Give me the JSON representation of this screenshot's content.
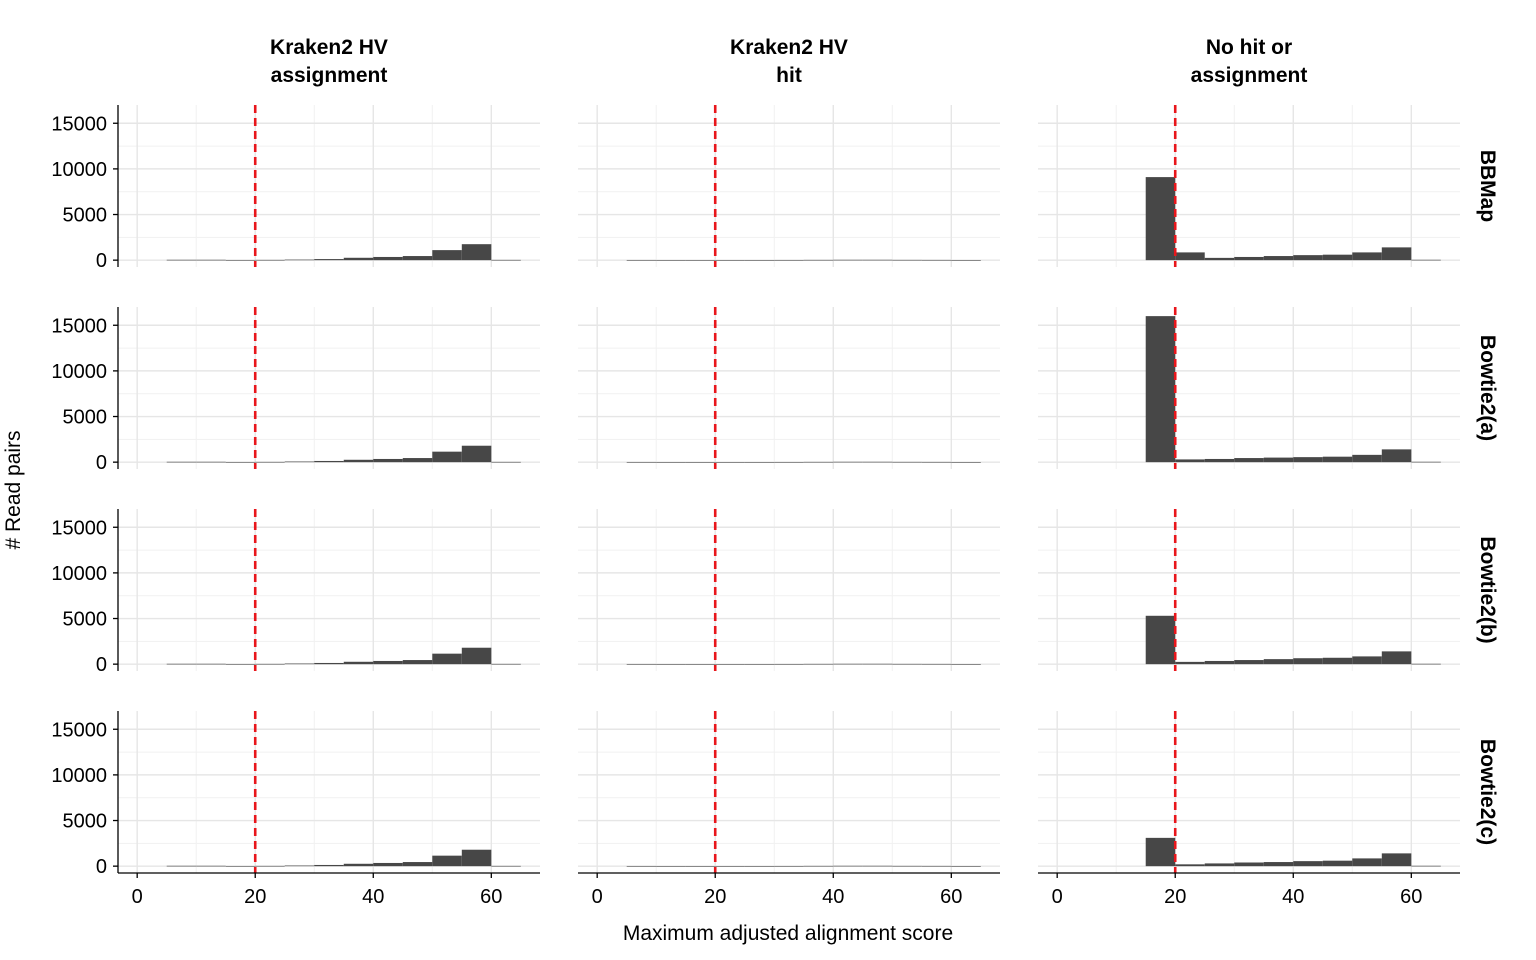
{
  "chart_data": {
    "type": "bar",
    "xlabel": "Maximum adjusted alignment score",
    "ylabel": "# Read pairs",
    "xlim": [
      -3.25,
      68.25
    ],
    "ylim": [
      -750,
      17000
    ],
    "x_ticks": [
      0,
      20,
      40,
      60
    ],
    "y_ticks": [
      0,
      5000,
      10000,
      15000
    ],
    "bin_width": 5,
    "bin_starts": [
      0,
      5,
      10,
      15,
      20,
      25,
      30,
      35,
      40,
      45,
      50,
      55,
      60
    ],
    "threshold": 20,
    "threshold_color": "#e8161b",
    "bar_color": "#474747",
    "grid": true,
    "columns": [
      "Kraken2 HV\nassignment",
      "Kraken2 HV\nhit",
      "No hit or\nassignment"
    ],
    "rows": [
      "BBMap",
      "Bowtie2(a)",
      "Bowtie2(b)",
      "Bowtie2(c)"
    ],
    "panels": [
      [
        {
          "values": [
            0,
            40,
            40,
            20,
            30,
            60,
            120,
            260,
            350,
            450,
            1100,
            1750,
            30
          ]
        },
        {
          "values": [
            0,
            20,
            10,
            5,
            10,
            15,
            20,
            30,
            40,
            40,
            30,
            25,
            10
          ]
        },
        {
          "values": [
            0,
            0,
            0,
            9100,
            850,
            250,
            350,
            450,
            550,
            600,
            850,
            1400,
            40
          ]
        }
      ],
      [
        {
          "values": [
            0,
            40,
            40,
            20,
            30,
            70,
            130,
            260,
            350,
            450,
            1150,
            1800,
            30
          ]
        },
        {
          "values": [
            0,
            20,
            10,
            5,
            10,
            15,
            20,
            30,
            40,
            40,
            30,
            25,
            10
          ]
        },
        {
          "values": [
            0,
            0,
            0,
            16000,
            300,
            350,
            450,
            500,
            550,
            600,
            800,
            1400,
            40
          ]
        }
      ],
      [
        {
          "values": [
            0,
            40,
            40,
            20,
            30,
            70,
            130,
            260,
            350,
            450,
            1150,
            1800,
            30
          ]
        },
        {
          "values": [
            0,
            20,
            10,
            5,
            10,
            15,
            20,
            30,
            40,
            40,
            30,
            25,
            10
          ]
        },
        {
          "values": [
            0,
            0,
            0,
            5300,
            250,
            350,
            450,
            550,
            650,
            700,
            850,
            1400,
            40
          ]
        }
      ],
      [
        {
          "values": [
            0,
            40,
            40,
            20,
            30,
            70,
            130,
            260,
            350,
            450,
            1150,
            1800,
            30
          ]
        },
        {
          "values": [
            0,
            20,
            10,
            5,
            10,
            15,
            20,
            30,
            40,
            40,
            30,
            25,
            10
          ]
        },
        {
          "values": [
            0,
            0,
            0,
            3100,
            200,
            300,
            400,
            450,
            550,
            600,
            850,
            1400,
            40
          ]
        }
      ]
    ]
  }
}
